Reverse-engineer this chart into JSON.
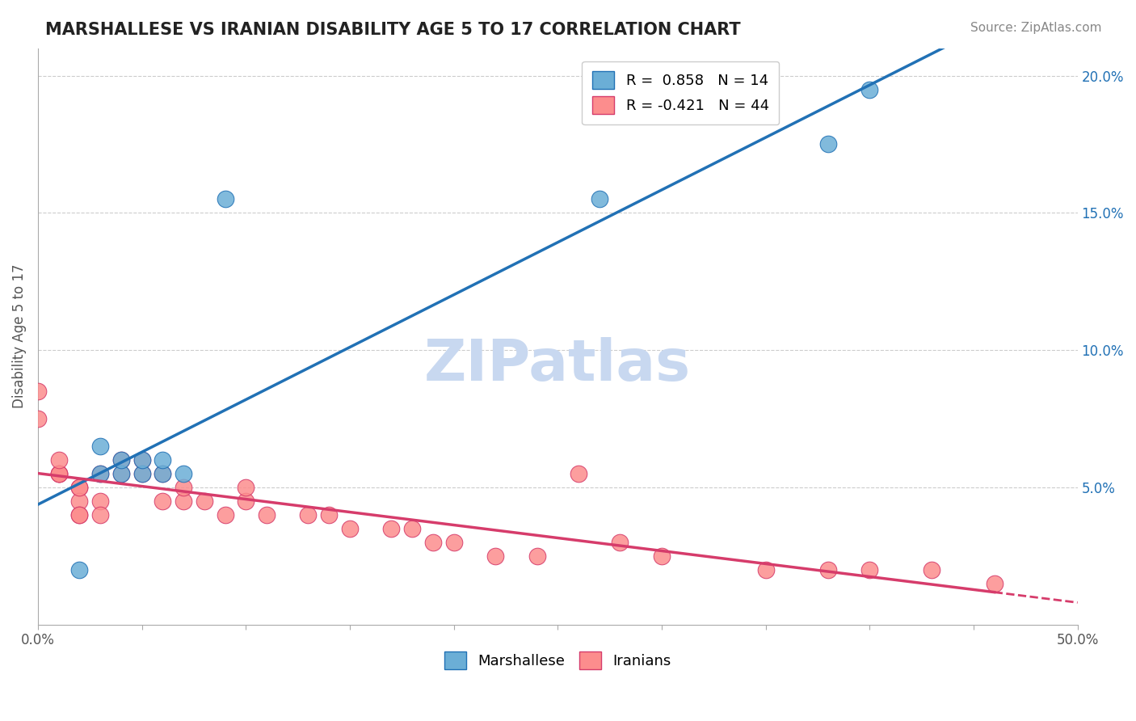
{
  "title": "MARSHALLESE VS IRANIAN DISABILITY AGE 5 TO 17 CORRELATION CHART",
  "source_text": "Source: ZipAtlas.com",
  "ylabel": "Disability Age 5 to 17",
  "xlim": [
    0.0,
    0.5
  ],
  "ylim": [
    0.0,
    0.21
  ],
  "xticks": [
    0.0,
    0.05,
    0.1,
    0.15,
    0.2,
    0.25,
    0.3,
    0.35,
    0.4,
    0.45,
    0.5
  ],
  "xticklabels": [
    "0.0%",
    "",
    "",
    "",
    "",
    "",
    "",
    "",
    "",
    "",
    "50.0%"
  ],
  "yticks_right": [
    0.05,
    0.1,
    0.15,
    0.2
  ],
  "ytick_right_labels": [
    "5.0%",
    "10.0%",
    "15.0%",
    "20.0%"
  ],
  "marshallese_x": [
    0.02,
    0.03,
    0.03,
    0.04,
    0.04,
    0.05,
    0.05,
    0.06,
    0.06,
    0.07,
    0.09,
    0.27,
    0.38,
    0.4
  ],
  "marshallese_y": [
    0.02,
    0.055,
    0.065,
    0.055,
    0.06,
    0.055,
    0.06,
    0.055,
    0.06,
    0.055,
    0.155,
    0.155,
    0.175,
    0.195
  ],
  "iranians_x": [
    0.0,
    0.0,
    0.01,
    0.01,
    0.01,
    0.01,
    0.02,
    0.02,
    0.02,
    0.02,
    0.02,
    0.03,
    0.03,
    0.03,
    0.04,
    0.04,
    0.05,
    0.05,
    0.06,
    0.06,
    0.07,
    0.07,
    0.08,
    0.09,
    0.1,
    0.1,
    0.11,
    0.13,
    0.14,
    0.15,
    0.17,
    0.18,
    0.19,
    0.2,
    0.22,
    0.24,
    0.26,
    0.28,
    0.3,
    0.35,
    0.38,
    0.4,
    0.43,
    0.46
  ],
  "iranians_y": [
    0.085,
    0.075,
    0.055,
    0.055,
    0.055,
    0.06,
    0.05,
    0.045,
    0.04,
    0.04,
    0.05,
    0.045,
    0.04,
    0.055,
    0.055,
    0.06,
    0.055,
    0.06,
    0.045,
    0.055,
    0.045,
    0.05,
    0.045,
    0.04,
    0.045,
    0.05,
    0.04,
    0.04,
    0.04,
    0.035,
    0.035,
    0.035,
    0.03,
    0.03,
    0.025,
    0.025,
    0.055,
    0.03,
    0.025,
    0.02,
    0.02,
    0.02,
    0.02,
    0.015
  ],
  "marshallese_R": 0.858,
  "marshallese_N": 14,
  "iranians_R": -0.421,
  "iranians_N": 44,
  "blue_color": "#6baed6",
  "blue_line_color": "#2171b5",
  "pink_color": "#fc8d8d",
  "pink_line_color": "#d63c6b",
  "watermark_text": "ZIPatlas",
  "watermark_color": "#c8d8f0",
  "background_color": "#ffffff",
  "grid_color": "#cccccc"
}
